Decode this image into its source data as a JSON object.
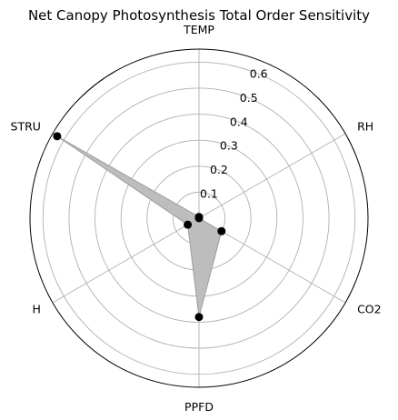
{
  "chart_data": {
    "type": "radar",
    "title": "Net Canopy Photosynthesis Total Order Sensitivity",
    "categories": [
      "TEMP",
      "RH",
      "CO2",
      "PPFD",
      "H",
      "STRU"
    ],
    "series": [
      {
        "values": [
          0.005,
          0.0,
          0.1,
          0.38,
          0.05,
          0.63
        ]
      }
    ],
    "radial_ticks": [
      0.1,
      0.2,
      0.3,
      0.4,
      0.5,
      0.6
    ],
    "radial_tick_labels": [
      "0.1",
      "0.2",
      "0.3",
      "0.4",
      "0.5",
      "0.6"
    ],
    "rlim": [
      0,
      0.65
    ],
    "grid": true,
    "colors": {
      "fill": "#bdbdbd",
      "line": "#9e9e9e",
      "marker": "#000000",
      "grid": "#b0b0b0",
      "frame": "#000000"
    }
  }
}
